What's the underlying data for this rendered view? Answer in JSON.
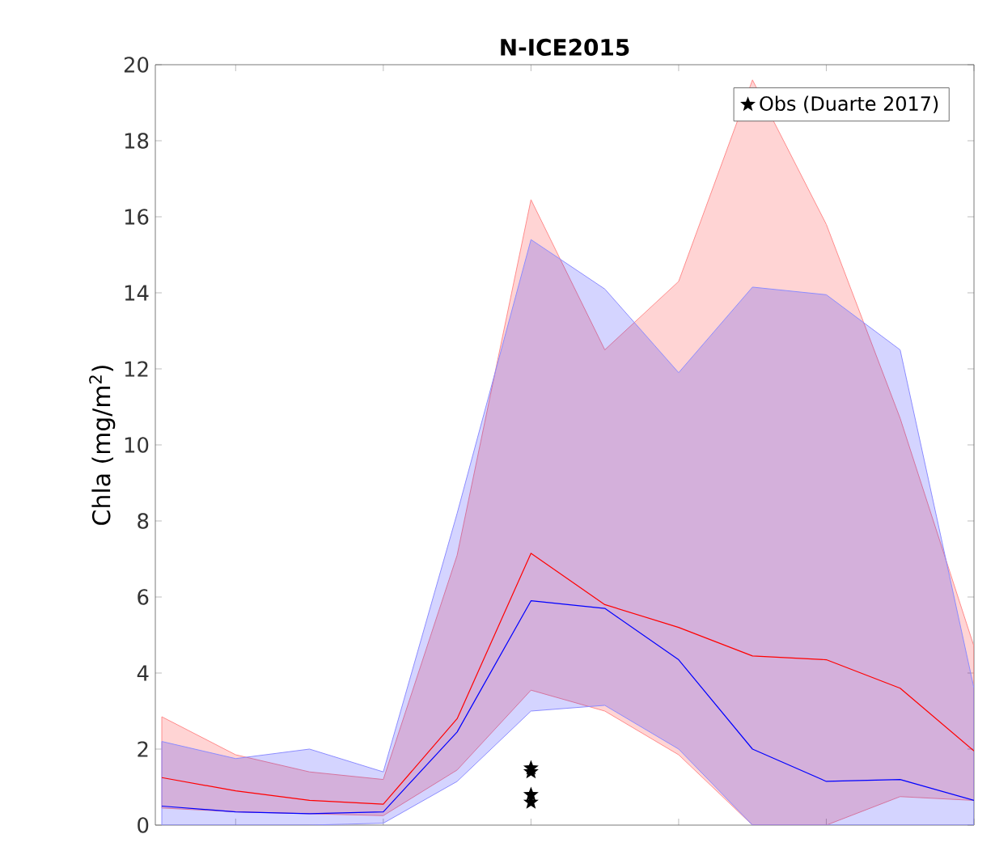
{
  "chart_data": {
    "type": "line",
    "title": "N-ICE2015",
    "ylabel": "Chla (mg/m$^{2}$)",
    "categories": [
      null,
      null,
      null,
      null,
      null,
      null,
      null,
      null,
      null,
      null,
      null,
      null
    ],
    "ylim": [
      0,
      20
    ],
    "yticks": [
      0,
      2,
      4,
      6,
      8,
      10,
      12,
      14,
      16,
      18,
      20
    ],
    "grid": false,
    "legend": "top right",
    "series": [
      {
        "type": "line",
        "color": "#ff0000",
        "values": [
          1.25,
          0.9,
          0.65,
          0.55,
          2.8,
          7.15,
          5.8,
          5.2,
          4.45,
          4.35,
          3.6,
          1.95
        ],
        "lower": [
          0.45,
          0.35,
          0.3,
          0.25,
          1.45,
          3.55,
          3.0,
          1.85,
          0.0,
          0.0,
          0.75,
          0.65
        ],
        "upper": [
          2.85,
          1.85,
          1.4,
          1.2,
          7.1,
          16.45,
          12.5,
          14.3,
          19.6,
          15.8,
          10.7,
          4.7
        ]
      },
      {
        "type": "line",
        "color": "#0000ff",
        "values": [
          0.5,
          0.35,
          0.3,
          0.35,
          2.45,
          5.9,
          5.7,
          4.35,
          2.0,
          1.15,
          1.2,
          0.65
        ],
        "lower": [
          0.0,
          0.0,
          0.0,
          0.05,
          1.15,
          3.0,
          3.15,
          2.0,
          0.0,
          0.0,
          0.0,
          0.0
        ],
        "upper": [
          2.2,
          1.75,
          2.0,
          1.4,
          8.2,
          15.4,
          14.1,
          11.9,
          14.15,
          13.95,
          12.5,
          3.6
        ]
      },
      {
        "type": "scatter",
        "name": "Obs (Duarte 2017)",
        "color": "#000000",
        "marker": "star",
        "values": [
          null,
          null,
          null,
          null,
          null,
          1.5,
          null,
          null,
          null,
          null,
          null,
          null
        ]
      },
      {
        "type": "scatter",
        "color": "#000000",
        "marker": "star",
        "values": [
          null,
          null,
          null,
          null,
          null,
          1.4,
          null,
          null,
          null,
          null,
          null,
          null
        ]
      },
      {
        "type": "scatter",
        "color": "#000000",
        "marker": "star",
        "values": [
          null,
          null,
          null,
          null,
          null,
          0.8,
          null,
          null,
          null,
          null,
          null,
          null
        ]
      },
      {
        "type": "scatter",
        "color": "#000000",
        "marker": "star",
        "values": [
          null,
          null,
          null,
          null,
          null,
          0.6,
          null,
          null,
          null,
          null,
          null,
          null
        ]
      }
    ]
  }
}
